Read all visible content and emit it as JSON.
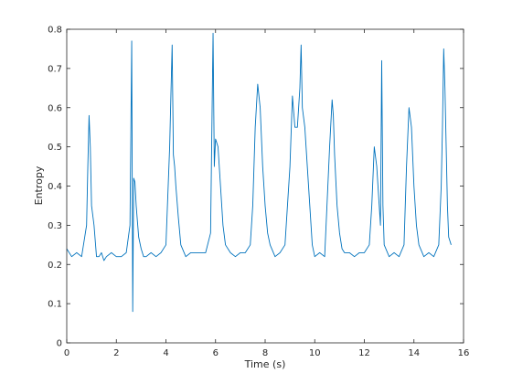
{
  "chart_data": {
    "type": "line",
    "title": "",
    "xlabel": "Time (s)",
    "ylabel": "Entropy",
    "xlim": [
      0,
      16
    ],
    "ylim": [
      0,
      0.8
    ],
    "xticks": [
      0,
      2,
      4,
      6,
      8,
      10,
      12,
      14,
      16
    ],
    "yticks": [
      0,
      0.1,
      0.2,
      0.3,
      0.4,
      0.5,
      0.6,
      0.7,
      0.8
    ],
    "xtick_labels": [
      "0",
      "2",
      "4",
      "6",
      "8",
      "10",
      "12",
      "14",
      "16"
    ],
    "ytick_labels": [
      "0",
      "0.1",
      "0.2",
      "0.3",
      "0.4",
      "0.5",
      "0.6",
      "0.7",
      "0.8"
    ],
    "grid": false,
    "legend": "none",
    "line_color": "#0072bd",
    "series": [
      {
        "x": [
          0.0,
          0.2,
          0.4,
          0.6,
          0.8,
          0.85,
          0.9,
          0.95,
          1.0,
          1.1,
          1.2,
          1.3,
          1.4,
          1.5,
          1.6,
          1.8,
          2.0,
          2.2,
          2.4,
          2.55,
          2.62,
          2.66,
          2.7,
          2.75,
          2.8,
          2.9,
          3.0,
          3.1,
          3.2,
          3.4,
          3.6,
          3.8,
          4.0,
          4.15,
          4.25,
          4.3,
          4.35,
          4.4,
          4.5,
          4.6,
          4.8,
          5.0,
          5.2,
          5.4,
          5.6,
          5.8,
          5.9,
          5.95,
          6.0,
          6.1,
          6.2,
          6.3,
          6.4,
          6.6,
          6.8,
          7.0,
          7.2,
          7.4,
          7.5,
          7.6,
          7.7,
          7.8,
          7.9,
          8.0,
          8.1,
          8.2,
          8.4,
          8.6,
          8.8,
          9.0,
          9.1,
          9.2,
          9.3,
          9.4,
          9.45,
          9.5,
          9.6,
          9.7,
          9.8,
          9.9,
          10.0,
          10.2,
          10.4,
          10.6,
          10.7,
          10.75,
          10.8,
          10.9,
          11.0,
          11.1,
          11.2,
          11.4,
          11.6,
          11.8,
          12.0,
          12.2,
          12.3,
          12.4,
          12.5,
          12.6,
          12.65,
          12.7,
          12.75,
          12.8,
          13.0,
          13.2,
          13.4,
          13.6,
          13.7,
          13.8,
          13.9,
          14.0,
          14.1,
          14.2,
          14.4,
          14.6,
          14.8,
          15.0,
          15.1,
          15.15,
          15.2,
          15.25,
          15.3,
          15.35,
          15.4,
          15.5
        ],
        "values": [
          0.24,
          0.22,
          0.23,
          0.22,
          0.3,
          0.45,
          0.58,
          0.5,
          0.35,
          0.3,
          0.22,
          0.22,
          0.23,
          0.21,
          0.22,
          0.23,
          0.22,
          0.22,
          0.23,
          0.3,
          0.77,
          0.08,
          0.42,
          0.41,
          0.35,
          0.27,
          0.24,
          0.22,
          0.22,
          0.23,
          0.22,
          0.23,
          0.25,
          0.5,
          0.76,
          0.48,
          0.45,
          0.4,
          0.32,
          0.25,
          0.22,
          0.23,
          0.23,
          0.23,
          0.23,
          0.28,
          0.79,
          0.45,
          0.52,
          0.5,
          0.4,
          0.3,
          0.25,
          0.23,
          0.22,
          0.23,
          0.23,
          0.25,
          0.35,
          0.55,
          0.66,
          0.6,
          0.45,
          0.35,
          0.28,
          0.25,
          0.22,
          0.23,
          0.25,
          0.45,
          0.63,
          0.55,
          0.55,
          0.65,
          0.76,
          0.6,
          0.55,
          0.45,
          0.35,
          0.25,
          0.22,
          0.23,
          0.22,
          0.5,
          0.62,
          0.58,
          0.48,
          0.35,
          0.28,
          0.24,
          0.23,
          0.23,
          0.22,
          0.23,
          0.23,
          0.25,
          0.35,
          0.5,
          0.45,
          0.35,
          0.3,
          0.72,
          0.35,
          0.25,
          0.22,
          0.23,
          0.22,
          0.25,
          0.45,
          0.6,
          0.55,
          0.4,
          0.3,
          0.25,
          0.22,
          0.23,
          0.22,
          0.25,
          0.4,
          0.55,
          0.75,
          0.65,
          0.5,
          0.35,
          0.27,
          0.25
        ]
      }
    ]
  }
}
